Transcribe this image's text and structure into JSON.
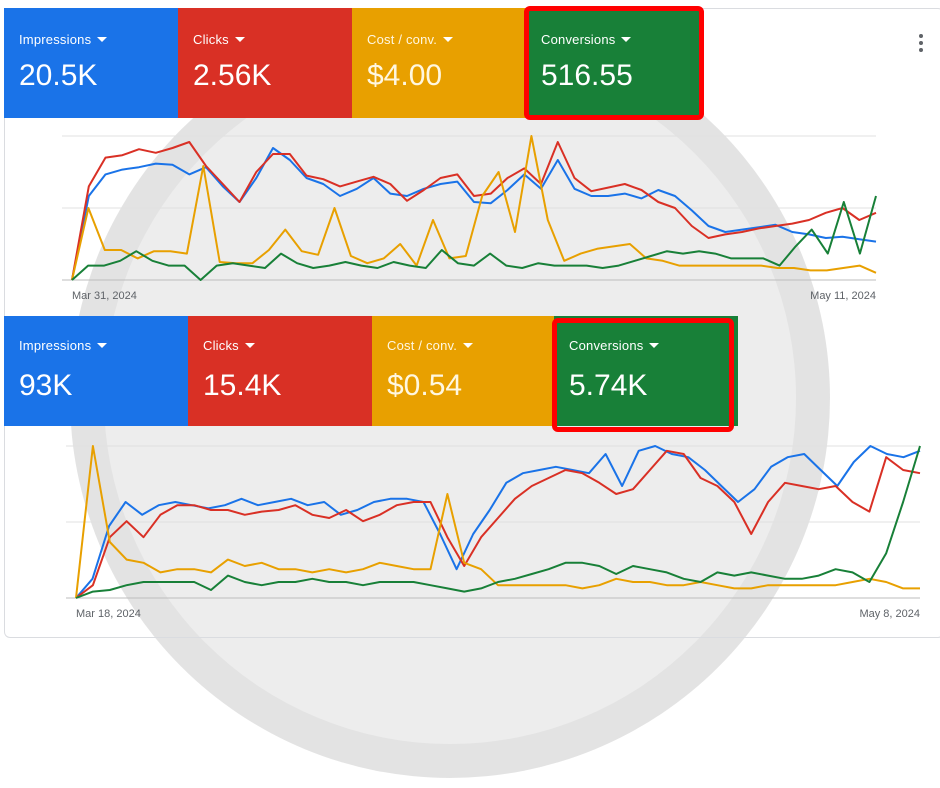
{
  "menu_icon": "more-vert-icon",
  "colors": {
    "impressions": "#1a73e8",
    "clicks": "#d93025",
    "cost": "#e8a000",
    "conversions": "#188038",
    "highlight": "#ff0000"
  },
  "top": {
    "tiles": [
      {
        "label": "Impressions",
        "value": "20.5K"
      },
      {
        "label": "Clicks",
        "value": "2.56K"
      },
      {
        "label": "Cost / conv.",
        "value": "$4.00"
      },
      {
        "label": "Conversions",
        "value": "516.55"
      }
    ],
    "x_start": "Mar 31, 2024",
    "x_end": "May 11, 2024"
  },
  "bottom": {
    "tiles": [
      {
        "label": "Impressions",
        "value": "93K"
      },
      {
        "label": "Clicks",
        "value": "15.4K"
      },
      {
        "label": "Cost / conv.",
        "value": "$0.54"
      },
      {
        "label": "Conversions",
        "value": "5.74K"
      }
    ],
    "x_start": "Mar 18, 2024",
    "x_end": "May 8, 2024"
  },
  "chart_data": [
    {
      "type": "line",
      "xlabel": "",
      "ylabel": "",
      "x_tick_labels": [
        "Mar 31, 2024",
        "May 11, 2024"
      ],
      "series": [
        {
          "name": "Impressions",
          "values": [
            0,
            70,
            88,
            92,
            94,
            97,
            96,
            88,
            94,
            78,
            65,
            85,
            110,
            100,
            85,
            80,
            70,
            76,
            85,
            72,
            70,
            76,
            80,
            82,
            65,
            64,
            75,
            88,
            76,
            100,
            76,
            70,
            70,
            72,
            68,
            75,
            70,
            58,
            45,
            40,
            42,
            44,
            46,
            40,
            38,
            35,
            36,
            34,
            32
          ]
        },
        {
          "name": "Clicks",
          "values": [
            0,
            78,
            102,
            104,
            109,
            106,
            110,
            115,
            95,
            80,
            65,
            90,
            105,
            105,
            87,
            84,
            78,
            82,
            86,
            80,
            66,
            75,
            85,
            88,
            70,
            72,
            85,
            93,
            80,
            115,
            85,
            74,
            77,
            80,
            75,
            65,
            60,
            45,
            35,
            38,
            40,
            43,
            45,
            47,
            50,
            56,
            60,
            50,
            56
          ]
        },
        {
          "name": "Cost / conv.",
          "values": [
            0,
            60,
            25,
            25,
            18,
            24,
            24,
            22,
            95,
            15,
            14,
            14,
            25,
            42,
            24,
            21,
            60,
            20,
            14,
            18,
            30,
            12,
            50,
            18,
            20,
            70,
            90,
            40,
            120,
            50,
            16,
            22,
            26,
            28,
            30,
            18,
            16,
            12,
            12,
            12,
            12,
            12,
            12,
            10,
            10,
            8,
            8,
            10,
            12,
            6
          ]
        },
        {
          "name": "Conversions",
          "values": [
            0,
            12,
            12,
            16,
            24,
            16,
            12,
            12,
            0,
            12,
            14,
            12,
            10,
            22,
            14,
            10,
            12,
            15,
            12,
            10,
            15,
            12,
            10,
            25,
            14,
            12,
            22,
            12,
            10,
            14,
            12,
            12,
            12,
            10,
            12,
            16,
            20,
            24,
            22,
            24,
            22,
            18,
            18,
            18,
            12,
            28,
            42,
            22,
            65,
            22,
            70
          ]
        }
      ]
    },
    {
      "type": "line",
      "xlabel": "",
      "ylabel": "",
      "x_tick_labels": [
        "Mar 18, 2024",
        "May 8, 2024"
      ],
      "series": [
        {
          "name": "Impressions",
          "values": [
            0,
            12,
            45,
            60,
            52,
            58,
            60,
            58,
            56,
            58,
            62,
            58,
            60,
            62,
            58,
            60,
            52,
            55,
            60,
            62,
            62,
            60,
            40,
            18,
            40,
            55,
            72,
            78,
            80,
            82,
            80,
            78,
            90,
            70,
            92,
            95,
            90,
            88,
            80,
            70,
            60,
            68,
            82,
            88,
            90,
            80,
            70,
            85,
            95,
            90,
            88,
            92
          ]
        },
        {
          "name": "Clicks",
          "values": [
            0,
            8,
            38,
            48,
            38,
            52,
            58,
            58,
            55,
            55,
            52,
            54,
            55,
            58,
            52,
            50,
            55,
            48,
            52,
            58,
            60,
            60,
            38,
            20,
            38,
            50,
            62,
            70,
            75,
            80,
            78,
            72,
            65,
            68,
            80,
            92,
            90,
            75,
            70,
            60,
            40,
            60,
            72,
            70,
            68,
            70,
            60,
            54,
            88,
            80,
            78
          ]
        },
        {
          "name": "Cost / conv.",
          "values": [
            0,
            95,
            35,
            24,
            22,
            16,
            18,
            18,
            16,
            24,
            20,
            22,
            18,
            18,
            16,
            18,
            16,
            18,
            22,
            20,
            18,
            18,
            65,
            22,
            18,
            8,
            8,
            8,
            8,
            8,
            6,
            8,
            12,
            10,
            10,
            8,
            8,
            10,
            8,
            6,
            6,
            8,
            8,
            8,
            8,
            8,
            10,
            12,
            10,
            6,
            6
          ]
        },
        {
          "name": "Conversions",
          "values": [
            0,
            4,
            5,
            8,
            10,
            10,
            10,
            10,
            5,
            14,
            10,
            8,
            10,
            10,
            12,
            10,
            10,
            8,
            10,
            10,
            10,
            8,
            6,
            4,
            6,
            10,
            12,
            15,
            18,
            22,
            22,
            20,
            15,
            20,
            18,
            16,
            12,
            10,
            16,
            14,
            16,
            14,
            12,
            12,
            14,
            18,
            16,
            10,
            28,
            60,
            95
          ]
        }
      ]
    }
  ]
}
